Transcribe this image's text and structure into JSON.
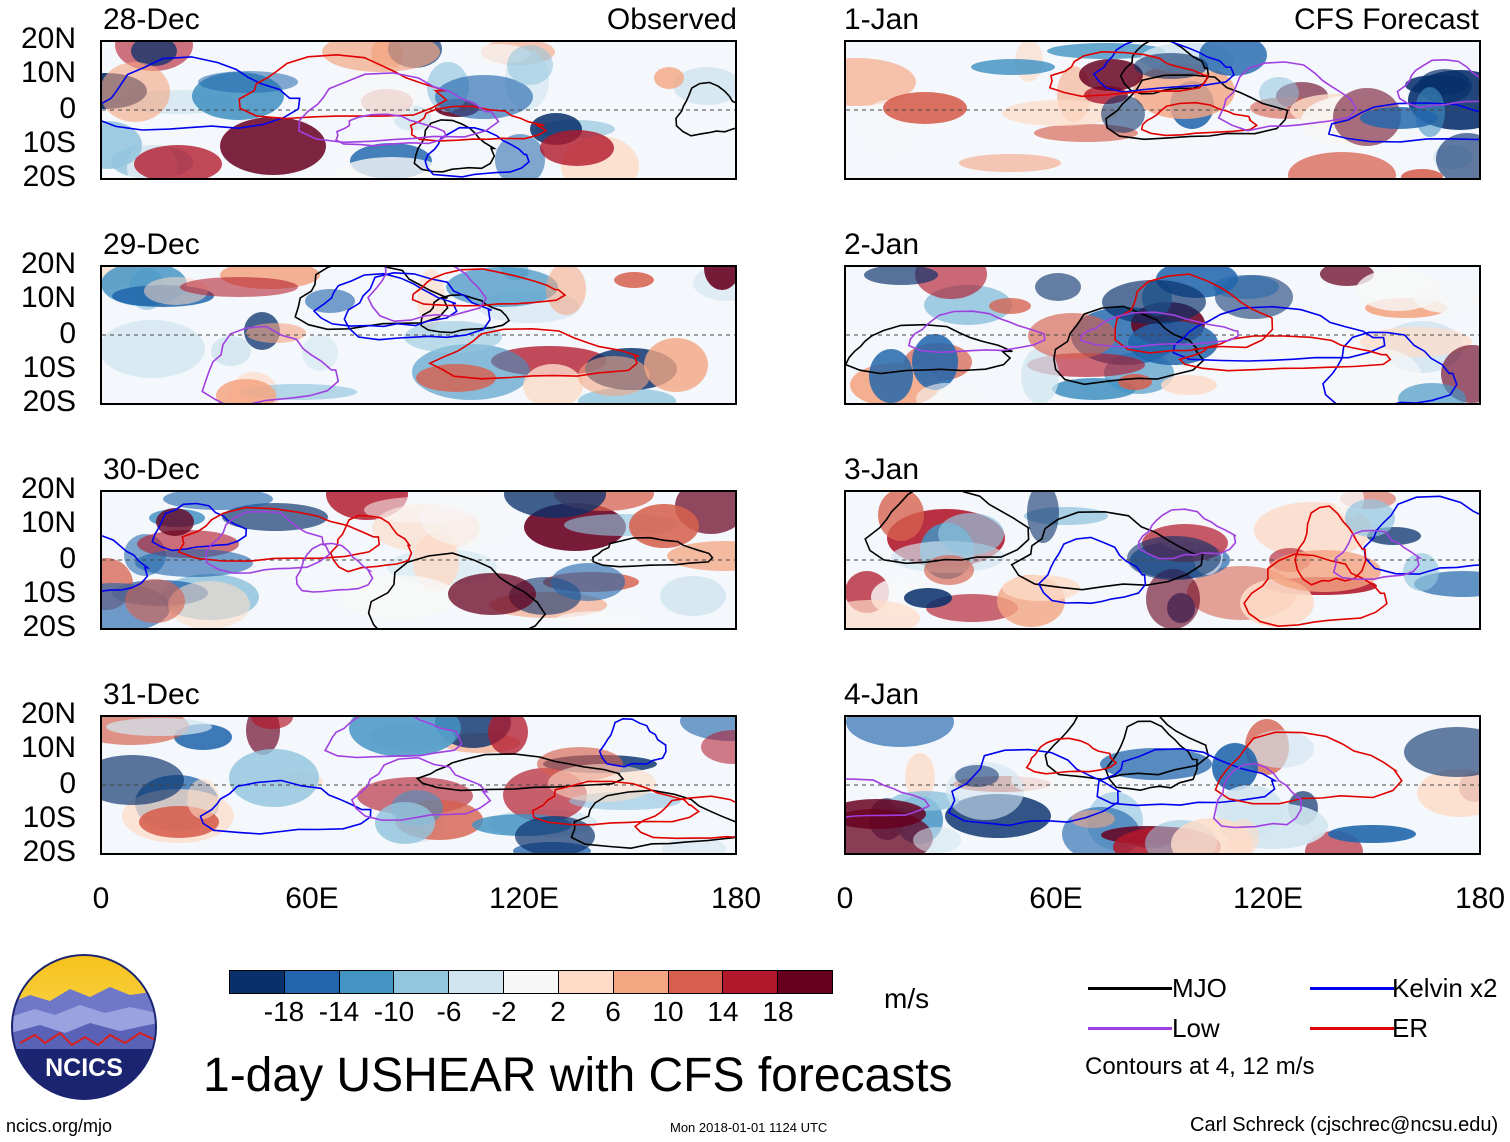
{
  "panels": [
    {
      "date": "28-Dec",
      "label": "Observed"
    },
    {
      "date": "29-Dec",
      "label": ""
    },
    {
      "date": "30-Dec",
      "label": ""
    },
    {
      "date": "31-Dec",
      "label": ""
    },
    {
      "date": "1-Jan",
      "label": "CFS Forecast"
    },
    {
      "date": "2-Jan",
      "label": ""
    },
    {
      "date": "3-Jan",
      "label": ""
    },
    {
      "date": "4-Jan",
      "label": ""
    }
  ],
  "lat_labels": [
    "20N",
    "10N",
    "0",
    "10S",
    "20S"
  ],
  "lon_labels": [
    "0",
    "60E",
    "120E",
    "180"
  ],
  "colorbar": {
    "colors": [
      "#08306b",
      "#2166ac",
      "#4393c3",
      "#92c5de",
      "#d1e5f0",
      "#f7f7f7",
      "#fddbc7",
      "#f4a582",
      "#d6604d",
      "#b2182b",
      "#67001f"
    ],
    "ticks": [
      "-18",
      "-14",
      "-10",
      "-6",
      "-2",
      "2",
      "6",
      "10",
      "14",
      "18"
    ],
    "unit": "m/s"
  },
  "legend": {
    "items": [
      {
        "label": "MJO",
        "color": "#000000"
      },
      {
        "label": "Kelvin x2",
        "color": "#0000ee"
      },
      {
        "label": "Low",
        "color": "#a040e0"
      },
      {
        "label": "ER",
        "color": "#e00000"
      }
    ],
    "note": "Contours at 4, 12 m/s"
  },
  "logo": {
    "text": "NCICS"
  },
  "title": "1-day USHEAR with CFS forecasts",
  "footer": {
    "url": "ncics.org/mjo",
    "timestamp": "Mon 2018-01-01 1124 UTC",
    "author": "Carl Schreck (cjschrec@ncsu.edu)"
  }
}
